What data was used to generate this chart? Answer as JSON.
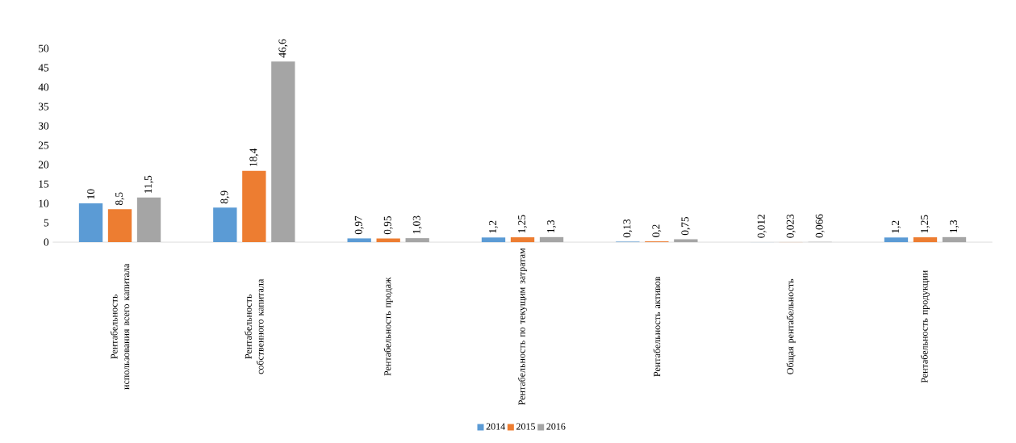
{
  "chart_data": {
    "type": "bar",
    "categories": [
      "Рентабельность использования всего капитала",
      "Рентабельность собственного капитала",
      "Рентабельность продаж",
      "Рентабельность по текущим затратам",
      "Рентабельность активов",
      "Общая рентабельность",
      "Рентабельность продукции"
    ],
    "series": [
      {
        "name": "2014",
        "color": "#5b9bd5",
        "values": [
          10,
          8.9,
          0.97,
          1.2,
          0.13,
          0.012,
          1.2
        ],
        "value_labels": [
          "10",
          "8,9",
          "0,97",
          "1,2",
          "0,13",
          "0,012",
          "1,2"
        ]
      },
      {
        "name": "2015",
        "color": "#ed7d31",
        "values": [
          8.5,
          18.4,
          0.95,
          1.25,
          0.2,
          0.023,
          1.25
        ],
        "value_labels": [
          "8,5",
          "18,4",
          "0,95",
          "1,25",
          "0,2",
          "0,023",
          "1,25"
        ]
      },
      {
        "name": "2016",
        "color": "#a5a5a5",
        "values": [
          11.5,
          46.6,
          1.03,
          1.3,
          0.75,
          0.066,
          1.3
        ],
        "value_labels": [
          "11,5",
          "46,6",
          "1,03",
          "1,3",
          "0,75",
          "0,066",
          "1,3"
        ]
      }
    ],
    "ylim": [
      0,
      50
    ],
    "yticks": [
      0,
      5,
      10,
      15,
      20,
      25,
      30,
      35,
      40,
      45,
      50
    ],
    "grid": false,
    "legend": "bottom"
  }
}
